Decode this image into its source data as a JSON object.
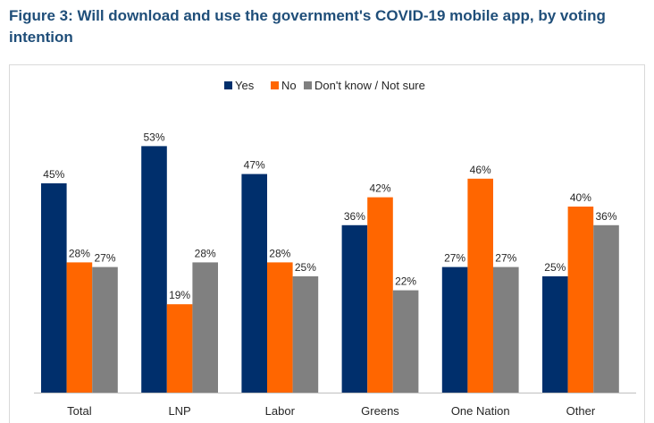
{
  "title": "Figure 3: Will download and use the government's COVID-19 mobile app, by voting intention",
  "chart_data": {
    "type": "bar",
    "title": "Figure 3: Will download and use the government's COVID-19 mobile app, by voting intention",
    "categories": [
      "Total",
      "LNP",
      "Labor",
      "Greens",
      "One Nation",
      "Other"
    ],
    "series": [
      {
        "name": "Yes",
        "values": [
          45,
          53,
          47,
          36,
          27,
          25
        ],
        "color": "#002f6c"
      },
      {
        "name": "No",
        "values": [
          28,
          19,
          28,
          42,
          46,
          40
        ],
        "color": "#ff6600"
      },
      {
        "name": "Don't know / Not sure",
        "values": [
          27,
          28,
          25,
          22,
          27,
          36
        ],
        "color": "#808080"
      }
    ],
    "value_suffix": "%",
    "ylim": [
      0,
      60
    ],
    "grid": false,
    "legend_position": "top-center",
    "xlabel": "",
    "ylabel": ""
  }
}
